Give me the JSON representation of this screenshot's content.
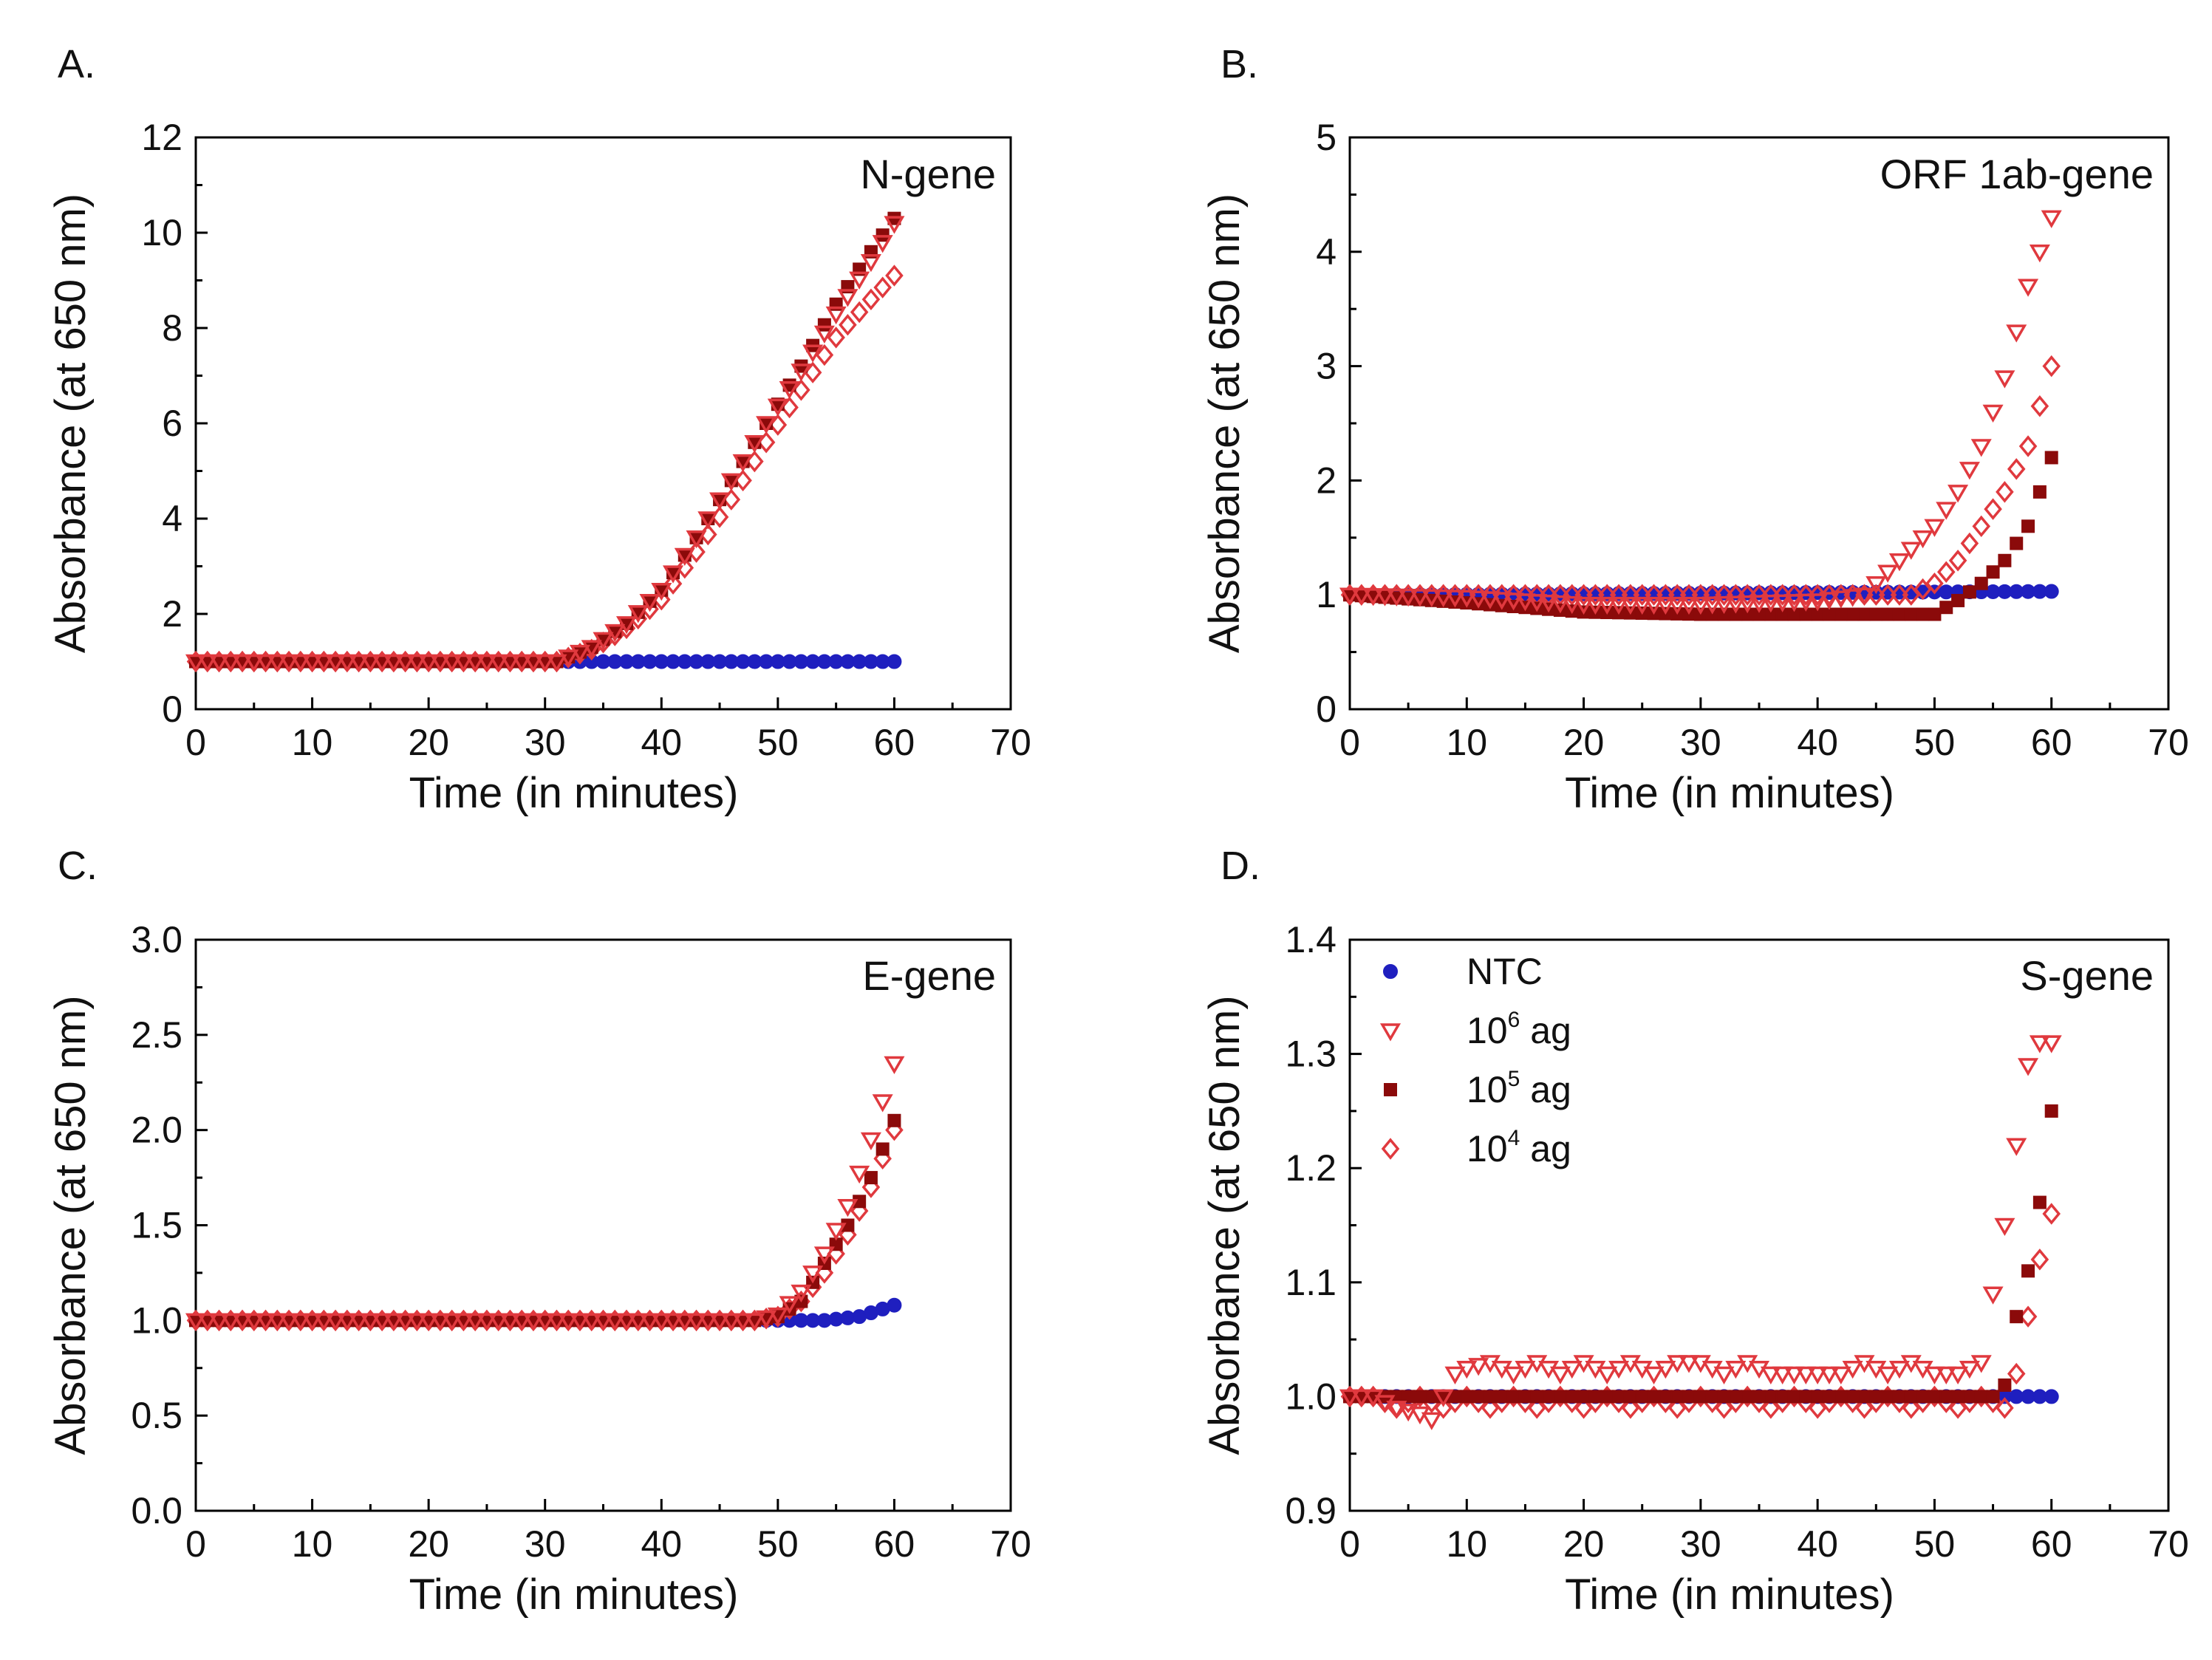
{
  "figure": {
    "series_legend": [
      {
        "key": "ntc",
        "base": "NTC",
        "sup": "",
        "rest": "",
        "marker": "circle",
        "color": "#1f1fbf"
      },
      {
        "key": "e6",
        "base": "10",
        "sup": "6",
        "rest": " ag",
        "marker": "triangle-down",
        "color": "#e0393e"
      },
      {
        "key": "e5",
        "base": "10",
        "sup": "5",
        "rest": " ag",
        "marker": "square",
        "color": "#8b0a0a"
      },
      {
        "key": "e4",
        "base": "10",
        "sup": "4",
        "rest": " ag",
        "marker": "diamond",
        "color": "#e0393e"
      }
    ]
  },
  "chart_data": [
    {
      "panel": "A.",
      "type": "scatter",
      "title": "N-gene",
      "xlabel": "Time (in minutes)",
      "ylabel": "Absorbance (at 650 nm)",
      "xlim": [
        0,
        70
      ],
      "ylim": [
        0,
        12
      ],
      "xticks": [
        0,
        10,
        20,
        30,
        40,
        50,
        60,
        70
      ],
      "yticks": [
        0,
        2,
        4,
        6,
        8,
        10,
        12
      ],
      "ytick_labels": [
        "0",
        "2",
        "4",
        "6",
        "8",
        "10",
        "12"
      ],
      "grid": false,
      "legend": false,
      "series": [
        {
          "key": "ntc",
          "name": "NTC",
          "x": [
            0,
            60
          ],
          "y": [
            1.0,
            1.0
          ]
        },
        {
          "key": "e6",
          "name": "10^6 ag",
          "x": [
            0,
            31,
            34,
            37,
            40,
            43,
            46,
            49,
            52,
            55,
            58,
            60
          ],
          "y": [
            1.0,
            1.0,
            1.3,
            1.8,
            2.5,
            3.6,
            4.8,
            6.0,
            7.1,
            8.3,
            9.4,
            10.2
          ]
        },
        {
          "key": "e5",
          "name": "10^5 ag",
          "x": [
            0,
            31,
            34,
            37,
            40,
            43,
            46,
            49,
            52,
            55,
            58,
            60
          ],
          "y": [
            1.0,
            1.0,
            1.3,
            1.8,
            2.5,
            3.6,
            4.8,
            6.0,
            7.2,
            8.5,
            9.6,
            10.3
          ]
        },
        {
          "key": "e4",
          "name": "10^4 ag",
          "x": [
            0,
            31,
            34,
            37,
            40,
            43,
            46,
            49,
            52,
            55,
            58,
            60
          ],
          "y": [
            1.0,
            1.0,
            1.25,
            1.7,
            2.3,
            3.3,
            4.4,
            5.6,
            6.7,
            7.8,
            8.6,
            9.1
          ]
        }
      ]
    },
    {
      "panel": "B.",
      "type": "scatter",
      "title": "ORF 1ab-gene",
      "xlabel": "Time (in minutes)",
      "ylabel": "Absorbance (at 650 nm)",
      "xlim": [
        0,
        70
      ],
      "ylim": [
        0,
        5
      ],
      "xticks": [
        0,
        10,
        20,
        30,
        40,
        50,
        60,
        70
      ],
      "yticks": [
        0,
        1,
        2,
        3,
        4,
        5
      ],
      "ytick_labels": [
        "0",
        "1",
        "2",
        "3",
        "4",
        "5"
      ],
      "grid": false,
      "legend": false,
      "series": [
        {
          "key": "ntc",
          "name": "NTC",
          "x": [
            0,
            60
          ],
          "y": [
            1.0,
            1.03
          ]
        },
        {
          "key": "e6",
          "name": "10^6 ag",
          "x": [
            0,
            10,
            20,
            30,
            40,
            44,
            46,
            48,
            50,
            52,
            54,
            56,
            58,
            60
          ],
          "y": [
            1.0,
            0.98,
            0.92,
            0.92,
            0.95,
            1.0,
            1.2,
            1.4,
            1.6,
            1.9,
            2.3,
            2.9,
            3.7,
            4.3
          ]
        },
        {
          "key": "e5",
          "name": "10^5 ag",
          "x": [
            0,
            10,
            20,
            30,
            40,
            50,
            52,
            54,
            56,
            58,
            60
          ],
          "y": [
            1.0,
            0.93,
            0.85,
            0.83,
            0.83,
            0.83,
            0.95,
            1.1,
            1.3,
            1.6,
            2.2
          ]
        },
        {
          "key": "e4",
          "name": "10^4 ag",
          "x": [
            0,
            10,
            20,
            30,
            40,
            48,
            50,
            52,
            54,
            56,
            58,
            60
          ],
          "y": [
            1.0,
            1.0,
            1.0,
            1.0,
            1.0,
            1.0,
            1.1,
            1.3,
            1.6,
            1.9,
            2.3,
            3.0
          ]
        }
      ]
    },
    {
      "panel": "C.",
      "type": "scatter",
      "title": "E-gene",
      "xlabel": "Time (in minutes)",
      "ylabel": "Absorbance (at 650 nm)",
      "xlim": [
        0,
        70
      ],
      "ylim": [
        0,
        3
      ],
      "xticks": [
        0,
        10,
        20,
        30,
        40,
        50,
        60,
        70
      ],
      "yticks": [
        0,
        0.5,
        1,
        1.5,
        2,
        2.5,
        3
      ],
      "ytick_labels": [
        "0.0",
        "0.5",
        "1.0",
        "1.5",
        "2.0",
        "2.5",
        "3.0"
      ],
      "grid": false,
      "legend": false,
      "series": [
        {
          "key": "ntc",
          "name": "NTC",
          "x": [
            0,
            54,
            57,
            60
          ],
          "y": [
            1.0,
            1.0,
            1.02,
            1.08
          ]
        },
        {
          "key": "e6",
          "name": "10^6 ag",
          "x": [
            0,
            48,
            50,
            52,
            54,
            56,
            58,
            60
          ],
          "y": [
            1.0,
            1.0,
            1.03,
            1.15,
            1.35,
            1.6,
            1.95,
            2.35
          ]
        },
        {
          "key": "e5",
          "name": "10^5 ag",
          "x": [
            0,
            48,
            50,
            52,
            54,
            56,
            58,
            60
          ],
          "y": [
            1.0,
            1.0,
            1.02,
            1.1,
            1.3,
            1.5,
            1.75,
            2.05
          ]
        },
        {
          "key": "e4",
          "name": "10^4 ag",
          "x": [
            0,
            48,
            50,
            52,
            54,
            56,
            58,
            60
          ],
          "y": [
            1.0,
            1.0,
            1.02,
            1.1,
            1.25,
            1.45,
            1.7,
            2.0
          ]
        }
      ]
    },
    {
      "panel": "D.",
      "type": "scatter",
      "title": "S-gene",
      "xlabel": "Time (in minutes)",
      "ylabel": "Absorbance (at 650 nm)",
      "xlim": [
        0,
        70
      ],
      "ylim": [
        0.9,
        1.4
      ],
      "xticks": [
        0,
        10,
        20,
        30,
        40,
        50,
        60,
        70
      ],
      "yticks": [
        0.9,
        1.0,
        1.1,
        1.2,
        1.3,
        1.4
      ],
      "ytick_labels": [
        "0.9",
        "1.0",
        "1.1",
        "1.2",
        "1.3",
        "1.4"
      ],
      "grid": false,
      "legend": true,
      "series": [
        {
          "key": "ntc",
          "name": "NTC",
          "x": [
            0,
            60
          ],
          "y": [
            1.0,
            1.0
          ]
        },
        {
          "key": "e6",
          "name": "10^6 ag",
          "x": [
            0,
            2,
            4,
            6,
            7,
            8,
            9,
            10,
            12,
            14,
            16,
            18,
            20,
            22,
            24,
            26,
            28,
            30,
            32,
            34,
            36,
            38,
            40,
            42,
            44,
            46,
            48,
            50,
            52,
            54,
            55,
            56,
            57,
            58,
            59,
            60
          ],
          "y": [
            1.0,
            1.0,
            0.99,
            0.985,
            0.98,
            1.0,
            1.02,
            1.025,
            1.03,
            1.02,
            1.03,
            1.02,
            1.03,
            1.02,
            1.03,
            1.02,
            1.03,
            1.03,
            1.02,
            1.03,
            1.02,
            1.02,
            1.02,
            1.02,
            1.03,
            1.02,
            1.03,
            1.02,
            1.02,
            1.03,
            1.09,
            1.15,
            1.22,
            1.29,
            1.31,
            1.31
          ]
        },
        {
          "key": "e5",
          "name": "10^5 ag",
          "x": [
            0,
            10,
            20,
            30,
            40,
            50,
            55,
            56,
            57,
            58,
            59,
            60
          ],
          "y": [
            1.0,
            1.0,
            1.0,
            1.0,
            1.0,
            1.0,
            1.0,
            1.01,
            1.07,
            1.11,
            1.17,
            1.25
          ]
        },
        {
          "key": "e4",
          "name": "10^4 ag",
          "x": [
            0,
            2,
            4,
            6,
            8,
            10,
            12,
            14,
            16,
            18,
            20,
            22,
            24,
            26,
            28,
            30,
            32,
            34,
            36,
            38,
            40,
            42,
            44,
            46,
            48,
            50,
            52,
            54,
            56,
            57,
            58,
            59,
            60
          ],
          "y": [
            1.0,
            1.0,
            0.99,
            1.0,
            0.99,
            1.0,
            0.99,
            1.0,
            0.99,
            1.0,
            0.99,
            1.0,
            0.99,
            1.0,
            0.99,
            1.0,
            0.99,
            1.0,
            0.99,
            1.0,
            0.99,
            1.0,
            0.99,
            1.0,
            0.99,
            1.0,
            0.99,
            1.0,
            0.99,
            1.02,
            1.07,
            1.12,
            1.16
          ]
        }
      ]
    }
  ]
}
